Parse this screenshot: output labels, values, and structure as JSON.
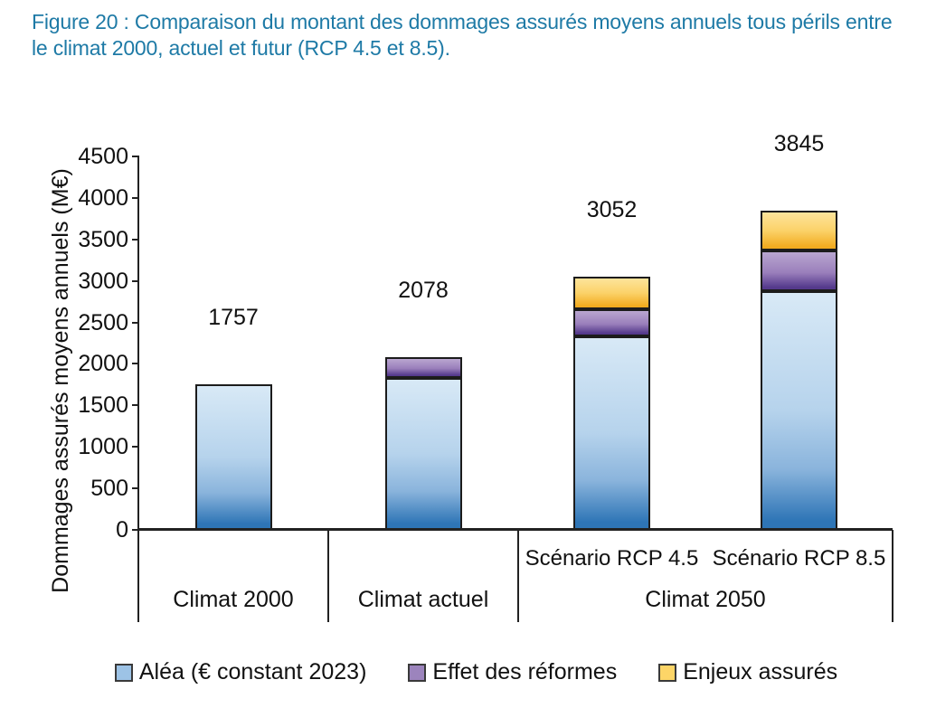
{
  "caption_color": "#1e7aa6",
  "chart_data": {
    "type": "bar",
    "stacked": true,
    "title": "Figure 20 : Comparaison du montant des dommages assurés moyens annuels tous périls entre le climat 2000, actuel et futur (RCP 4.5 et 8.5).",
    "ylabel": "Dommages assurés moyens annuels (M€)",
    "ylim": [
      0,
      4500
    ],
    "ytick_step": 500,
    "grid": false,
    "legend_position": "bottom",
    "categories": [
      "Climat 2000",
      "Climat actuel",
      "Scénario RCP 4.5",
      "Scénario RCP 8.5"
    ],
    "totals": [
      1757,
      2078,
      3052,
      3845
    ],
    "series": [
      {
        "name": "Aléa (€ constant 2023)",
        "swatch": "#9dc3e6",
        "gradient": [
          [
            "#d8e9f6",
            0
          ],
          [
            "#b6d3ec",
            50
          ],
          [
            "#8ab4dc",
            75
          ],
          [
            "#2e75b6",
            97
          ],
          [
            "#2e75b6",
            100
          ]
        ],
        "values": [
          1757,
          1830,
          2330,
          2880
        ]
      },
      {
        "name": "Effet des réformes",
        "swatch": "#9c84bd",
        "gradient": [
          [
            "#b9a6d0",
            0
          ],
          [
            "#9a7fbb",
            55
          ],
          [
            "#54398c",
            95
          ],
          [
            "#54398c",
            100
          ]
        ],
        "values": [
          0,
          248,
          325,
          485
        ]
      },
      {
        "name": "Enjeux assurés",
        "swatch": "#fdd567",
        "gradient": [
          [
            "#fde49b",
            0
          ],
          [
            "#fbd269",
            50
          ],
          [
            "#f2ab20",
            95
          ],
          [
            "#f2ab20",
            100
          ]
        ],
        "values": [
          0,
          0,
          397,
          480
        ]
      }
    ],
    "x_axis_groups": [
      {
        "label": "Climat 2000",
        "bar_indices": [
          0
        ],
        "sublabels": []
      },
      {
        "label": "Climat actuel",
        "bar_indices": [
          1
        ],
        "sublabels": []
      },
      {
        "label": "Climat 2050",
        "bar_indices": [
          2,
          3
        ],
        "sublabels": [
          "Scénario RCP 4.5",
          "Scénario RCP 8.5"
        ]
      }
    ]
  }
}
